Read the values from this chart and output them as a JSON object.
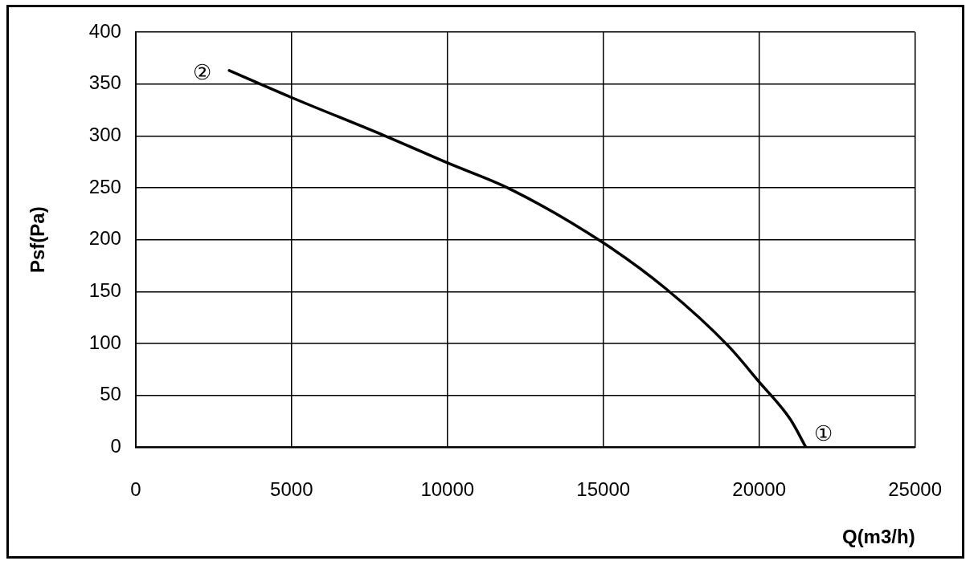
{
  "chart_data": {
    "type": "line",
    "xlabel": "Q(m3/h)",
    "ylabel": "Psf(Pa)",
    "x": [
      3000,
      5000,
      8000,
      10000,
      12000,
      15000,
      17000,
      19000,
      20000,
      21000,
      21500
    ],
    "series": [
      {
        "color": "#000000",
        "values": [
          363,
          337,
          300,
          274,
          249,
          197,
          153,
          98,
          63,
          27,
          0
        ]
      }
    ],
    "xlim": [
      0,
      25000
    ],
    "xticks": [
      0,
      5000,
      10000,
      15000,
      20000,
      25000
    ],
    "ylim": [
      0,
      400
    ],
    "yticks": [
      0,
      50,
      100,
      150,
      200,
      250,
      300,
      350,
      400
    ],
    "grid": true,
    "legend": false,
    "marker": "none",
    "line_style": "solid",
    "annotations": [
      {
        "text": "②",
        "x": 3000,
        "y": 363
      },
      {
        "text": "①",
        "x": 21500,
        "y": 0
      }
    ]
  }
}
